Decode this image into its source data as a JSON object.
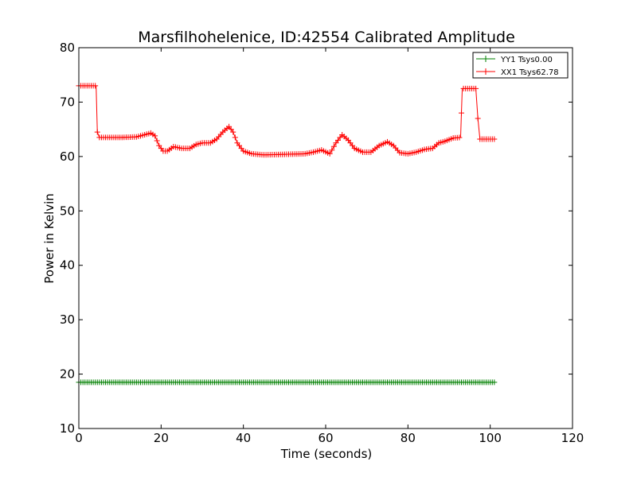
{
  "chart_data": {
    "type": "line",
    "title": "Marsfilhohelenice, ID:42554 Calibrated Amplitude",
    "xlabel": "Time (seconds)",
    "ylabel": "Power in Kelvin",
    "xlim": [
      0,
      120
    ],
    "ylim": [
      10,
      80
    ],
    "xticks": [
      "0",
      "20",
      "40",
      "60",
      "80",
      "100",
      "120"
    ],
    "yticks": [
      "10",
      "20",
      "30",
      "40",
      "50",
      "60",
      "70",
      "80"
    ],
    "grid": false,
    "legend_position": "top-right",
    "marker": "+",
    "series": [
      {
        "name": "YY1 Tsys0.00",
        "color": "#008000",
        "points": [
          [
            0,
            18.5
          ],
          [
            9.5,
            18.5
          ],
          [
            20,
            18.5
          ],
          [
            40,
            18.5
          ],
          [
            60,
            18.5
          ],
          [
            80,
            18.5
          ],
          [
            93,
            18.5
          ],
          [
            101,
            18.5
          ]
        ]
      },
      {
        "name": "XX1 Tsys62.78",
        "color": "#ff0000",
        "points": [
          [
            0,
            73.0
          ],
          [
            2,
            73.0
          ],
          [
            4.2,
            73.0
          ],
          [
            4.5,
            64.5
          ],
          [
            5,
            63.5
          ],
          [
            10,
            63.5
          ],
          [
            14,
            63.6
          ],
          [
            16,
            64.0
          ],
          [
            17.5,
            64.3
          ],
          [
            18.5,
            63.8
          ],
          [
            19.5,
            62.0
          ],
          [
            20.5,
            61.0
          ],
          [
            21.5,
            61.0
          ],
          [
            23,
            61.8
          ],
          [
            25,
            61.5
          ],
          [
            27,
            61.5
          ],
          [
            28.5,
            62.2
          ],
          [
            30,
            62.5
          ],
          [
            32,
            62.5
          ],
          [
            33.5,
            63.2
          ],
          [
            35,
            64.5
          ],
          [
            36.5,
            65.5
          ],
          [
            37.5,
            64.5
          ],
          [
            38.5,
            62.5
          ],
          [
            40,
            61.0
          ],
          [
            42,
            60.5
          ],
          [
            45,
            60.3
          ],
          [
            50,
            60.4
          ],
          [
            55,
            60.5
          ],
          [
            57,
            60.8
          ],
          [
            59,
            61.2
          ],
          [
            61,
            60.5
          ],
          [
            62.5,
            62.5
          ],
          [
            64,
            64.0
          ],
          [
            65.5,
            63.0
          ],
          [
            67,
            61.5
          ],
          [
            69,
            60.8
          ],
          [
            71,
            60.8
          ],
          [
            73,
            62.0
          ],
          [
            75,
            62.7
          ],
          [
            76.5,
            62.0
          ],
          [
            78,
            60.7
          ],
          [
            80,
            60.5
          ],
          [
            82,
            60.8
          ],
          [
            84,
            61.3
          ],
          [
            86,
            61.5
          ],
          [
            87.5,
            62.5
          ],
          [
            89,
            62.8
          ],
          [
            91,
            63.4
          ],
          [
            92.8,
            63.5
          ],
          [
            93.2,
            72.5
          ],
          [
            96.5,
            72.5
          ],
          [
            97,
            67.0
          ],
          [
            97.5,
            63.2
          ],
          [
            101,
            63.2
          ]
        ]
      }
    ]
  }
}
